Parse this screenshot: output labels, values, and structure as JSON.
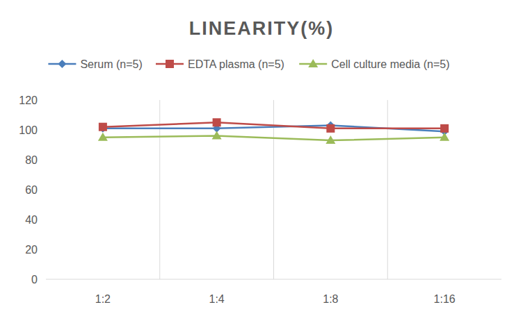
{
  "chart_data": {
    "type": "line",
    "title": "LINEARITY(%)",
    "categories": [
      "1:2",
      "1:4",
      "1:8",
      "1:16"
    ],
    "series": [
      {
        "name": "Serum (n=5)",
        "color": "#4a7ebb",
        "marker": "diamond",
        "values": [
          101,
          101,
          103,
          99
        ]
      },
      {
        "name": "EDTA plasma (n=5)",
        "color": "#be4b48",
        "marker": "square",
        "values": [
          102,
          105,
          101,
          101
        ]
      },
      {
        "name": "Cell culture media (n=5)",
        "color": "#9bbb59",
        "marker": "triangle",
        "values": [
          95,
          96,
          93,
          95
        ]
      }
    ],
    "ylim": [
      0,
      120
    ],
    "yticks": [
      0,
      20,
      40,
      60,
      80,
      100,
      120
    ],
    "grid": true,
    "legend": "top"
  }
}
